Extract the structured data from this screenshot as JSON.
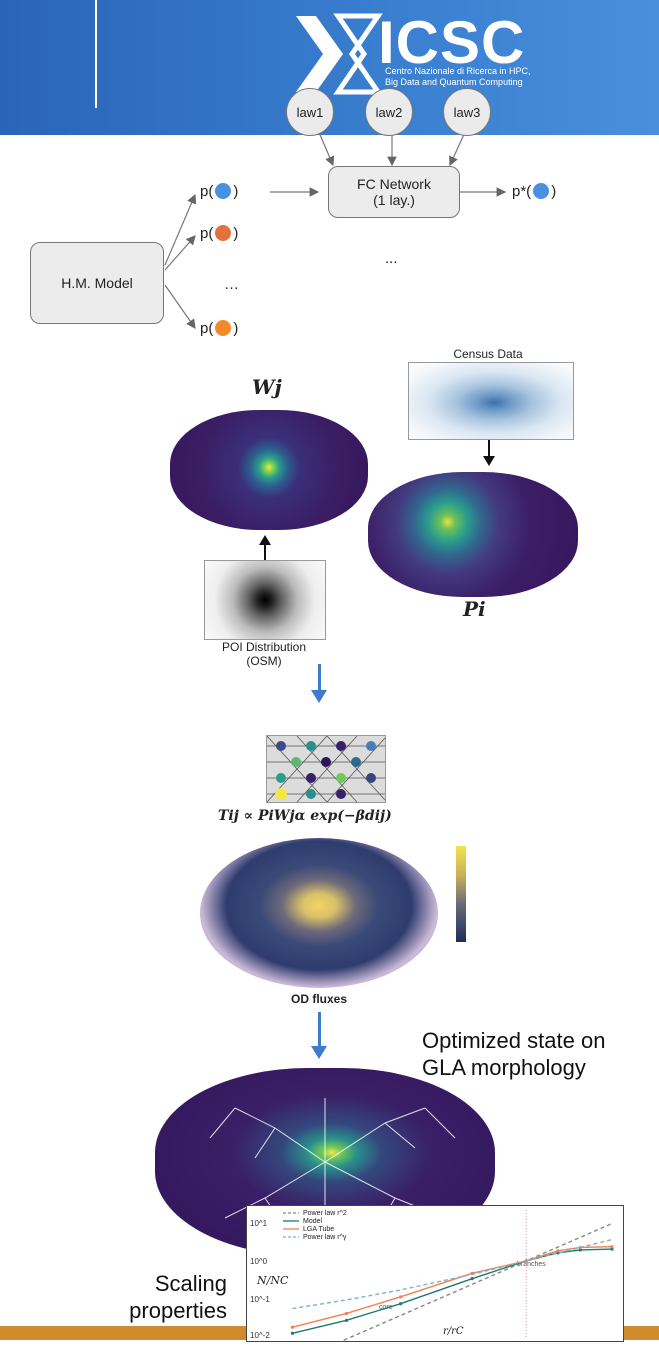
{
  "banner": {
    "logo_text": "ICSC",
    "logo_subtitle_lines": [
      "Centro Nazionale di Ricerca in HPC,",
      "Big Data and Quantum Computing"
    ],
    "color": "#3a7fd0"
  },
  "network": {
    "laws": [
      "law1",
      "law2",
      "law3"
    ],
    "fc_network": {
      "line1": "FC Network",
      "line2": "(1 lay.)"
    },
    "hm_model": "H.M. Model",
    "output_label_prefix": "p*(",
    "output_label_suffix": ")",
    "prob_prefix": "p(",
    "prob_suffix": ")",
    "ellipsis": "…",
    "ellipsis_right": "..."
  },
  "maps": {
    "wj_label": "Wj",
    "pi_label": "Pi",
    "census_label": "Census Data",
    "poi_label_line1": "POI Distribution",
    "poi_label_line2": "(OSM)",
    "formula": "Tij ∝ PiWjα exp(−βdij)",
    "od_label": "OD fluxes"
  },
  "annotations": {
    "optimized_line1": "Optimized state on",
    "optimized_line2": "GLA morphology",
    "scaling_line1": "Scaling",
    "scaling_line2": "properties"
  },
  "chart_data": {
    "type": "line",
    "title": "",
    "xlabel": "r/rC",
    "ylabel": "N/NC",
    "yscale": "log",
    "ylim": [
      0.01,
      20
    ],
    "ytick_labels": [
      "10^1",
      "10^0",
      "10^-1",
      "10^-2"
    ],
    "legend": [
      "Power law r^2",
      "Model",
      "LGA Tube",
      "Power law r^γ"
    ],
    "legend_placement": "top-left",
    "annotations": [
      "branches",
      "core"
    ],
    "series": [
      {
        "name": "Power law r^2",
        "style": "dashed",
        "color": "#888888",
        "x": [
          0.05,
          0.1,
          0.2,
          0.5,
          1,
          2,
          3
        ],
        "y": [
          0.0025,
          0.01,
          0.04,
          0.25,
          1,
          4,
          9
        ]
      },
      {
        "name": "Model",
        "style": "solid",
        "color": "#1f7a72",
        "x": [
          0.05,
          0.1,
          0.2,
          0.5,
          1,
          1.5,
          2,
          3
        ],
        "y": [
          0.014,
          0.03,
          0.08,
          0.35,
          1,
          1.6,
          1.9,
          2.0
        ]
      },
      {
        "name": "LGA Tube",
        "style": "solid",
        "color": "#f08050",
        "x": [
          0.05,
          0.1,
          0.2,
          0.5,
          1,
          1.5,
          2,
          3
        ],
        "y": [
          0.02,
          0.045,
          0.12,
          0.48,
          1,
          1.8,
          2.2,
          2.3
        ]
      },
      {
        "name": "Power law r^γ",
        "style": "dashed",
        "color": "#7fb0c8",
        "x": [
          0.05,
          0.1,
          0.2,
          0.5,
          1,
          2,
          3
        ],
        "y": [
          0.06,
          0.1,
          0.18,
          0.45,
          1,
          2.2,
          3.5
        ]
      }
    ],
    "vline_at": 1
  }
}
